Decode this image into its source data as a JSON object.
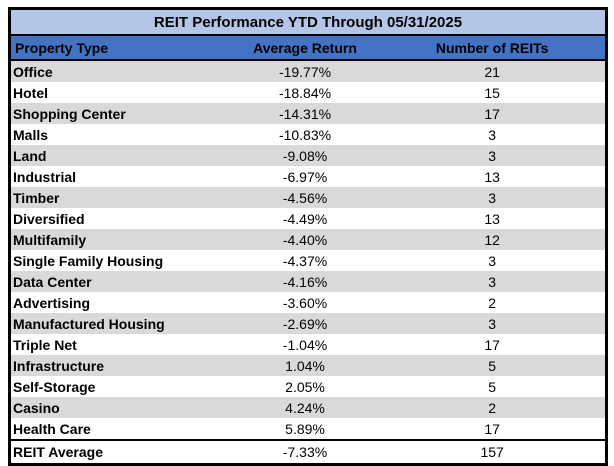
{
  "chart_data": {
    "type": "table",
    "title": "REIT Performance YTD Through 05/31/2025",
    "columns": {
      "property_type": "Property Type",
      "average_return": "Average Return",
      "number_of_reits": "Number of REITs"
    },
    "rows": [
      {
        "type": "Office",
        "avg_return": "-19.77%",
        "count": "21"
      },
      {
        "type": "Hotel",
        "avg_return": "-18.84%",
        "count": "15"
      },
      {
        "type": "Shopping Center",
        "avg_return": "-14.31%",
        "count": "17"
      },
      {
        "type": "Malls",
        "avg_return": "-10.83%",
        "count": "3"
      },
      {
        "type": "Land",
        "avg_return": "-9.08%",
        "count": "3"
      },
      {
        "type": "Industrial",
        "avg_return": "-6.97%",
        "count": "13"
      },
      {
        "type": "Timber",
        "avg_return": "-4.56%",
        "count": "3"
      },
      {
        "type": "Diversified",
        "avg_return": "-4.49%",
        "count": "13"
      },
      {
        "type": "Multifamily",
        "avg_return": "-4.40%",
        "count": "12"
      },
      {
        "type": "Single Family Housing",
        "avg_return": "-4.37%",
        "count": "3"
      },
      {
        "type": "Data Center",
        "avg_return": "-4.16%",
        "count": "3"
      },
      {
        "type": "Advertising",
        "avg_return": "-3.60%",
        "count": "2"
      },
      {
        "type": "Manufactured Housing",
        "avg_return": "-2.69%",
        "count": "3"
      },
      {
        "type": "Triple Net",
        "avg_return": "-1.04%",
        "count": "17"
      },
      {
        "type": "Infrastructure",
        "avg_return": "1.04%",
        "count": "5"
      },
      {
        "type": "Self-Storage",
        "avg_return": "2.05%",
        "count": "5"
      },
      {
        "type": "Casino",
        "avg_return": "4.24%",
        "count": "2"
      },
      {
        "type": "Health Care",
        "avg_return": "5.89%",
        "count": "17"
      }
    ],
    "footer": {
      "type": "REIT Average",
      "avg_return": "-7.33%",
      "count": "157"
    },
    "layout": {
      "legend": "none",
      "grid": "off",
      "stripe_start": "first-data-row"
    },
    "colors": {
      "title_bg": "#B4C6E7",
      "header_bg": "#4472C4",
      "stripe_bg": "#D9D9D9",
      "row_bg": "#FFFFFF",
      "text": "#000000",
      "border": "#000000"
    }
  }
}
